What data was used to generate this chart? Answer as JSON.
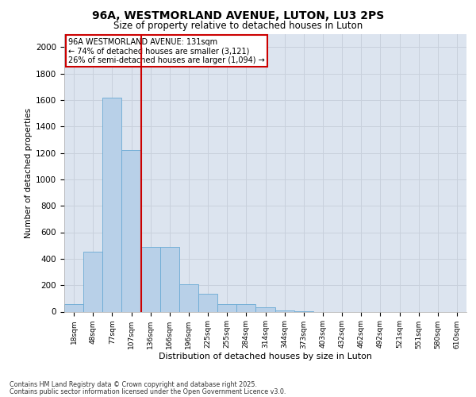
{
  "title_line1": "96A, WESTMORLAND AVENUE, LUTON, LU3 2PS",
  "title_line2": "Size of property relative to detached houses in Luton",
  "xlabel": "Distribution of detached houses by size in Luton",
  "ylabel": "Number of detached properties",
  "categories": [
    "18sqm",
    "48sqm",
    "77sqm",
    "107sqm",
    "136sqm",
    "166sqm",
    "196sqm",
    "225sqm",
    "255sqm",
    "284sqm",
    "314sqm",
    "344sqm",
    "373sqm",
    "403sqm",
    "432sqm",
    "462sqm",
    "492sqm",
    "521sqm",
    "551sqm",
    "580sqm",
    "610sqm"
  ],
  "values": [
    55,
    455,
    1620,
    1220,
    490,
    490,
    210,
    135,
    60,
    55,
    35,
    10,
    5,
    0,
    0,
    0,
    0,
    0,
    0,
    0,
    0
  ],
  "bar_color": "#b8d0e8",
  "bar_edge_color": "#6aaad4",
  "grid_color": "#c8d0dc",
  "background_color": "#dce4ef",
  "vline_color": "#cc0000",
  "annotation_text": "96A WESTMORLAND AVENUE: 131sqm\n← 74% of detached houses are smaller (3,121)\n26% of semi-detached houses are larger (1,094) →",
  "annotation_box_color": "#cc0000",
  "ylim": [
    0,
    2100
  ],
  "yticks": [
    0,
    200,
    400,
    600,
    800,
    1000,
    1200,
    1400,
    1600,
    1800,
    2000
  ],
  "footer_line1": "Contains HM Land Registry data © Crown copyright and database right 2025.",
  "footer_line2": "Contains public sector information licensed under the Open Government Licence v3.0.",
  "fig_width": 6.0,
  "fig_height": 5.0,
  "dpi": 100
}
